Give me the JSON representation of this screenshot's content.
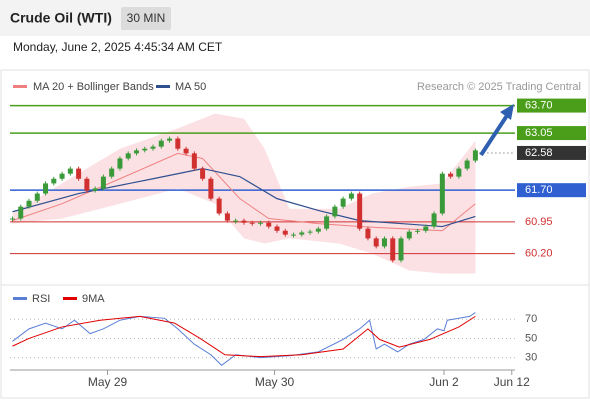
{
  "header": {
    "title": "Crude Oil (WTI)",
    "interval": "30 MIN",
    "timestamp": "Monday, June 2, 2025 4:45:34 AM CET"
  },
  "chart_data": [
    {
      "type": "candlestick",
      "source": "Research © 2025 Trading Central",
      "closes": [
        61.03,
        61.31,
        61.45,
        61.62,
        61.86,
        61.97,
        62.09,
        62.21,
        61.97,
        61.69,
        61.74,
        62.02,
        62.21,
        62.45,
        62.57,
        62.64,
        62.68,
        62.73,
        62.87,
        62.92,
        62.68,
        62.57,
        62.21,
        61.97,
        61.5,
        61.15,
        60.98,
        60.98,
        60.93,
        60.91,
        60.93,
        60.84,
        60.74,
        60.65,
        60.65,
        60.7,
        60.72,
        60.79,
        61.08,
        61.31,
        61.5,
        61.62,
        60.79,
        60.56,
        60.37,
        60.56,
        60.04,
        60.56,
        60.72,
        60.74,
        60.84,
        61.15,
        62.09,
        62.02,
        62.21,
        62.4,
        62.64
      ],
      "up_color": "#3a9a3a",
      "down_color": "#d03030",
      "ma20": {
        "name": "MA 20 + Bollinger Bands",
        "color": "#f08080",
        "x": [
          0,
          6,
          13,
          20,
          23,
          27.5,
          31,
          37,
          42,
          47,
          52,
          56
        ],
        "values": [
          60.98,
          61.38,
          61.97,
          62.57,
          62.45,
          61.5,
          61.03,
          60.91,
          60.84,
          60.79,
          60.74,
          61.38
        ]
      },
      "bollinger": {
        "color": "#fadadd",
        "x": [
          0,
          6,
          13,
          20,
          24.5,
          28,
          30.5,
          33.5,
          39.5,
          43.5,
          48,
          52,
          56
        ],
        "upper": [
          61.15,
          61.86,
          62.68,
          63.16,
          63.51,
          63.39,
          62.68,
          61.26,
          61.26,
          61.62,
          61.78,
          61.86,
          62.87
        ],
        "lower": [
          60.91,
          61.03,
          61.38,
          61.74,
          61.38,
          60.56,
          60.44,
          60.56,
          60.44,
          60.2,
          59.8,
          59.73,
          59.73
        ]
      },
      "ma50": {
        "name": "MA 50",
        "color": "#2f4f8f",
        "x": [
          0,
          8,
          17,
          23,
          27.5,
          32,
          37,
          42,
          47,
          52,
          56
        ],
        "values": [
          61.19,
          61.62,
          61.97,
          62.21,
          62.02,
          61.5,
          61.22,
          60.98,
          60.91,
          60.84,
          61.08
        ]
      },
      "levels": [
        {
          "value": 63.7,
          "label": "63.70",
          "color": "#4a9e1a",
          "boxed": true,
          "dotted": false
        },
        {
          "value": 63.05,
          "label": "63.05",
          "color": "#4a9e1a",
          "boxed": true,
          "dotted": false
        },
        {
          "value": 62.58,
          "label": "62.58",
          "color": "#333333",
          "boxed": true,
          "dotted": true
        },
        {
          "value": 61.7,
          "label": "61.70",
          "color": "#2f5fd0",
          "boxed": true,
          "dotted": false
        },
        {
          "value": 60.95,
          "label": "60.95",
          "color": "#d03030",
          "boxed": false,
          "dotted": false
        },
        {
          "value": 60.2,
          "label": "60.20",
          "color": "#d03030",
          "boxed": false,
          "dotted": false
        }
      ],
      "xlim": [
        -0.3,
        62
      ],
      "ylim": [
        59.6,
        63.95
      ],
      "xticks": [
        {
          "value": 11.5,
          "label": "May 29"
        },
        {
          "value": 31.7,
          "label": "May 30"
        },
        {
          "value": 52.2,
          "label": "Jun 2"
        },
        {
          "value": 60.4,
          "label": "Jun 12"
        }
      ]
    },
    {
      "type": "line",
      "xlim": [
        -0.3,
        62
      ],
      "ylim": [
        15,
        88
      ],
      "yticks": [
        30,
        50,
        70
      ],
      "series": [
        {
          "name": "RSI",
          "color": "#5b7fd6",
          "x": [
            0,
            2,
            4,
            6,
            7.5,
            9.4,
            11,
            13,
            15.4,
            18.4,
            20,
            22,
            24,
            25.3,
            27,
            30,
            33.5,
            37,
            40,
            42,
            43.2,
            44,
            45,
            46.6,
            48,
            49.8,
            51.4,
            52.2,
            52.6,
            54,
            55.3,
            56
          ],
          "values": [
            47,
            60,
            66,
            60,
            69,
            55,
            60,
            69,
            73,
            71,
            60,
            44,
            33,
            22,
            33,
            30,
            32,
            36,
            49,
            60,
            69,
            39,
            44,
            36,
            44,
            49,
            60,
            58,
            69,
            71,
            73,
            77
          ]
        },
        {
          "name": "9MA",
          "color": "#e00000",
          "x": [
            0,
            2,
            6,
            10.6,
            15.4,
            19.6,
            22.7,
            25.7,
            30,
            35,
            40,
            43,
            44.4,
            46.8,
            50.5,
            54,
            56
          ],
          "values": [
            42,
            50,
            62,
            69,
            73,
            66,
            50,
            33,
            31,
            33,
            39,
            60,
            49,
            41,
            49,
            62,
            73
          ]
        }
      ]
    }
  ]
}
